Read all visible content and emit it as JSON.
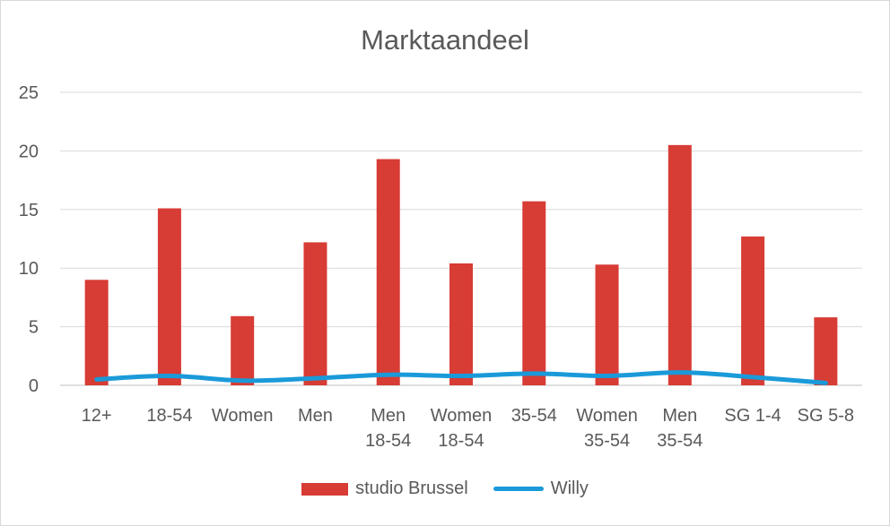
{
  "chart_data": {
    "type": "bar",
    "title": "Marktaandeel",
    "categories": [
      [
        "12+"
      ],
      [
        "18-54"
      ],
      [
        "Women"
      ],
      [
        "Men"
      ],
      [
        "Men",
        "18-54"
      ],
      [
        "Women",
        "18-54"
      ],
      [
        "35-54"
      ],
      [
        "Women",
        "35-54"
      ],
      [
        "Men",
        "35-54"
      ],
      [
        "SG 1-4"
      ],
      [
        "SG 5-8"
      ]
    ],
    "series": [
      {
        "name": "studio Brussel",
        "kind": "bar",
        "color": "#d73c35",
        "values": [
          9.0,
          15.1,
          5.9,
          12.2,
          19.3,
          10.4,
          15.7,
          10.3,
          20.5,
          12.7,
          5.8
        ]
      },
      {
        "name": "Willy",
        "kind": "line",
        "color": "#1a9ad9",
        "values": [
          0.5,
          0.8,
          0.4,
          0.6,
          0.9,
          0.8,
          1.0,
          0.8,
          1.1,
          0.7,
          0.2
        ]
      }
    ],
    "yticks": [
      "0",
      "5",
      "10",
      "15",
      "20",
      "25"
    ],
    "ylim": [
      0,
      25
    ],
    "grid": true,
    "legend_position": "bottom"
  }
}
